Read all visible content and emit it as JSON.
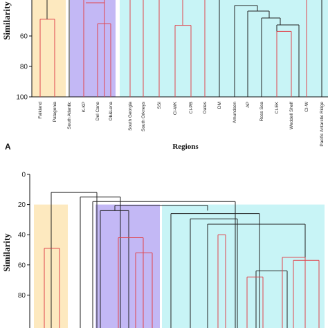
{
  "chart_data": [
    {
      "type": "dendrogram",
      "panel_label": "A",
      "ylabel": "Similarity",
      "xlabel": "Regions",
      "yticks": [
        60,
        80,
        100
      ],
      "leaves": [
        "Falkland",
        "Patagonia",
        "South Atlantic",
        "K-KP",
        "Del Cano",
        "Ob&Lena",
        "South Georgia",
        "South Orkneys",
        "SSI",
        "CI-WK",
        "CI-PB",
        "Oates",
        "DM",
        "Amundsen",
        "AP",
        "Ross Sea",
        "CI-EK",
        "Weddell Shelf",
        "CI-W",
        "Pacific Antarctic Ridge"
      ],
      "cluster_colors": {
        "shade_1": "#fde9bf",
        "shade_2": "#c3b8f5",
        "shade_3": "#c8f4f6",
        "red_links": "#e0444c",
        "black_links": "#222222"
      },
      "merges": [
        {
          "leaves": [
            "Falkland",
            "Patagonia"
          ],
          "similarity": 49
        },
        {
          "leaves": [
            "Del Cano",
            "Ob&Lena"
          ],
          "similarity": 52
        },
        {
          "leaves": [
            "CI-WK",
            "CI-PB"
          ],
          "similarity": 53
        },
        {
          "leaves": [
            "CI-EK",
            "Weddell Shelf"
          ],
          "similarity": 57
        }
      ]
    },
    {
      "type": "dendrogram",
      "ylabel": "Similarity",
      "yticks": [
        0,
        20,
        40,
        60,
        80
      ],
      "merges": [
        {
          "group": "shade_1",
          "similarity": 49
        },
        {
          "group": "shade_2",
          "similarity": 42
        },
        {
          "group": "shade_2",
          "similarity": 52
        },
        {
          "group": "shade_2",
          "similarity": 24
        },
        {
          "group": "shade_3",
          "similarity": 40
        },
        {
          "group": "shade_3",
          "similarity": 57
        },
        {
          "group": "shade_3",
          "similarity": 68
        }
      ]
    }
  ]
}
